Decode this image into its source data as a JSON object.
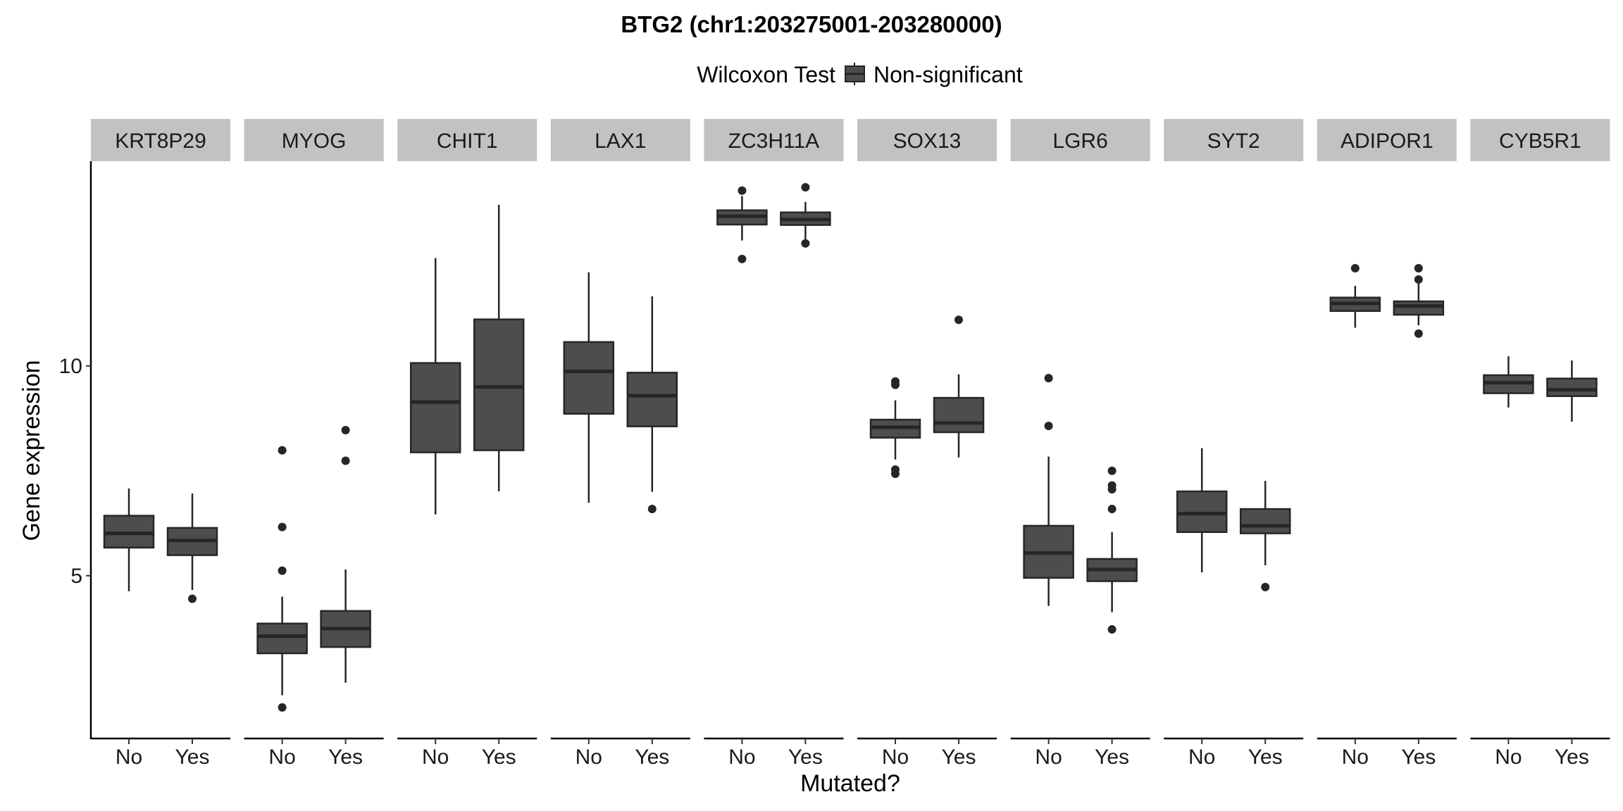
{
  "chart_data": {
    "type": "boxplot",
    "title": "BTG2 (chr1:203275001-203280000)",
    "xlabel": "Mutated?",
    "ylabel": "Gene expression",
    "ylim": [
      1.12,
      14.88
    ],
    "yticks": [
      5,
      10
    ],
    "ytick_labels": [
      "5",
      "10"
    ],
    "categories": [
      "No",
      "Yes"
    ],
    "grid": false,
    "legend": {
      "title": "Wilcoxon Test",
      "entries": [
        "Non-significant"
      ],
      "position": "top"
    },
    "colors": {
      "box_fill": "#4d4d4d",
      "box_line": "#262626",
      "strip_fill": "#c2c2c2",
      "axis": "#000000"
    },
    "panels": [
      {
        "label": "KRT8P29",
        "groups": [
          {
            "name": "No",
            "whisker_low": 4.63,
            "q1": 5.67,
            "median": 6.01,
            "q3": 6.43,
            "whisker_high": 7.08,
            "outliers": []
          },
          {
            "name": "Yes",
            "whisker_low": 4.66,
            "q1": 5.49,
            "median": 5.84,
            "q3": 6.14,
            "whisker_high": 6.96,
            "outliers": [
              4.45
            ]
          }
        ]
      },
      {
        "label": "MYOG",
        "groups": [
          {
            "name": "No",
            "whisker_low": 2.15,
            "q1": 3.15,
            "median": 3.56,
            "q3": 3.86,
            "whisker_high": 4.5,
            "outliers": [
              7.99,
              6.16,
              5.12,
              1.86
            ]
          },
          {
            "name": "Yes",
            "whisker_low": 2.45,
            "q1": 3.3,
            "median": 3.74,
            "q3": 4.16,
            "whisker_high": 5.15,
            "outliers": [
              8.47,
              7.74
            ]
          }
        ]
      },
      {
        "label": "CHIT1",
        "groups": [
          {
            "name": "No",
            "whisker_low": 6.46,
            "q1": 7.94,
            "median": 9.14,
            "q3": 10.07,
            "whisker_high": 12.57,
            "outliers": []
          },
          {
            "name": "Yes",
            "whisker_low": 7.01,
            "q1": 7.99,
            "median": 9.5,
            "q3": 11.11,
            "whisker_high": 13.84,
            "outliers": []
          }
        ]
      },
      {
        "label": "LAX1",
        "groups": [
          {
            "name": "No",
            "whisker_low": 6.74,
            "q1": 8.86,
            "median": 9.87,
            "q3": 10.57,
            "whisker_high": 12.23,
            "outliers": []
          },
          {
            "name": "Yes",
            "whisker_low": 7.0,
            "q1": 8.56,
            "median": 9.29,
            "q3": 9.84,
            "whisker_high": 11.66,
            "outliers": [
              6.59
            ]
          }
        ]
      },
      {
        "label": "ZC3H11A",
        "groups": [
          {
            "name": "No",
            "whisker_low": 12.99,
            "q1": 13.37,
            "median": 13.57,
            "q3": 13.71,
            "whisker_high": 14.05,
            "outliers": [
              14.18,
              12.55
            ]
          },
          {
            "name": "Yes",
            "whisker_low": 13.02,
            "q1": 13.36,
            "median": 13.49,
            "q3": 13.66,
            "whisker_high": 13.91,
            "outliers": [
              14.26,
              12.92
            ]
          }
        ]
      },
      {
        "label": "SOX13",
        "groups": [
          {
            "name": "No",
            "whisker_low": 7.77,
            "q1": 8.29,
            "median": 8.54,
            "q3": 8.72,
            "whisker_high": 9.18,
            "outliers": [
              9.63,
              9.55,
              7.53,
              7.43
            ]
          },
          {
            "name": "Yes",
            "whisker_low": 7.82,
            "q1": 8.42,
            "median": 8.64,
            "q3": 9.24,
            "whisker_high": 9.8,
            "outliers": [
              11.1
            ]
          }
        ]
      },
      {
        "label": "LGR6",
        "groups": [
          {
            "name": "No",
            "whisker_low": 4.28,
            "q1": 4.95,
            "median": 5.54,
            "q3": 6.19,
            "whisker_high": 7.84,
            "outliers": [
              9.71,
              8.57
            ]
          },
          {
            "name": "Yes",
            "whisker_low": 4.13,
            "q1": 4.87,
            "median": 5.15,
            "q3": 5.4,
            "whisker_high": 6.04,
            "outliers": [
              7.5,
              7.15,
              7.06,
              6.59,
              3.72
            ]
          }
        ]
      },
      {
        "label": "SYT2",
        "groups": [
          {
            "name": "No",
            "whisker_low": 5.08,
            "q1": 6.04,
            "median": 6.48,
            "q3": 7.01,
            "whisker_high": 8.04,
            "outliers": []
          },
          {
            "name": "Yes",
            "whisker_low": 5.25,
            "q1": 6.01,
            "median": 6.19,
            "q3": 6.59,
            "whisker_high": 7.26,
            "outliers": [
              4.73
            ]
          }
        ]
      },
      {
        "label": "ADIPOR1",
        "groups": [
          {
            "name": "No",
            "whisker_low": 10.91,
            "q1": 11.31,
            "median": 11.49,
            "q3": 11.63,
            "whisker_high": 11.91,
            "outliers": [
              12.33
            ]
          },
          {
            "name": "Yes",
            "whisker_low": 10.97,
            "q1": 11.22,
            "median": 11.43,
            "q3": 11.54,
            "whisker_high": 11.96,
            "outliers": [
              12.33,
              12.06,
              10.77
            ]
          }
        ]
      },
      {
        "label": "CYB5R1",
        "groups": [
          {
            "name": "No",
            "whisker_low": 9.01,
            "q1": 9.35,
            "median": 9.6,
            "q3": 9.78,
            "whisker_high": 10.23,
            "outliers": []
          },
          {
            "name": "Yes",
            "whisker_low": 8.67,
            "q1": 9.28,
            "median": 9.43,
            "q3": 9.7,
            "whisker_high": 10.13,
            "outliers": []
          }
        ]
      }
    ]
  }
}
